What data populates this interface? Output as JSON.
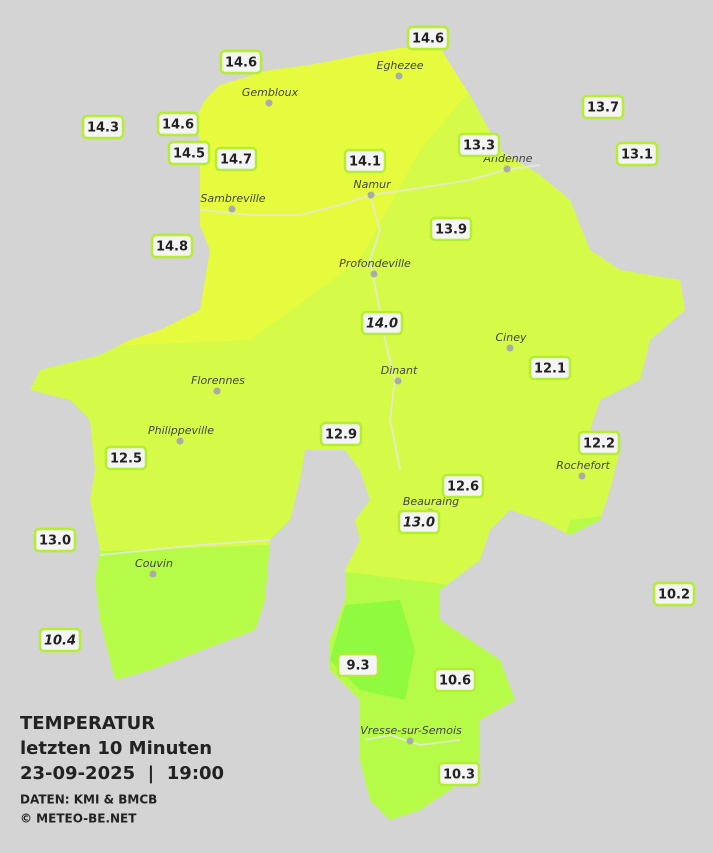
{
  "title": "TEMPERATUR",
  "subtitle": "letzten 10 Minuten",
  "datetime": "23-09-2025  |  19:00",
  "source": "DATEN: KMI & BMCB",
  "copyright": "© METEO-BE.NET",
  "cities": [
    "Eghezee",
    "Gembloux",
    "Andenne",
    "Namur",
    "Sambreville",
    "Profondeville",
    "Ciney",
    "Dinant",
    "Florennes",
    "Philippeville",
    "Rochefort",
    "Beauraing",
    "Couvin",
    "Vresse-sur-Semois"
  ],
  "stations": [
    {
      "label": "14.6"
    },
    {
      "label": "14.6"
    },
    {
      "label": "14.3"
    },
    {
      "label": "14.6"
    },
    {
      "label": "14.5"
    },
    {
      "label": "14.7"
    },
    {
      "label": "14.1"
    },
    {
      "label": "13.3"
    },
    {
      "label": "13.7"
    },
    {
      "label": "13.1"
    },
    {
      "label": "14.8"
    },
    {
      "label": "13.9"
    },
    {
      "label": "14.0",
      "italic": true
    },
    {
      "label": "12.1"
    },
    {
      "label": "12.9"
    },
    {
      "label": "12.2"
    },
    {
      "label": "12.5"
    },
    {
      "label": "12.6"
    },
    {
      "label": "13.0",
      "italic": true
    },
    {
      "label": "13.0"
    },
    {
      "label": "10.2"
    },
    {
      "label": "10.4",
      "italic": true
    },
    {
      "label": "9.3"
    },
    {
      "label": "10.6"
    },
    {
      "label": "10.3"
    }
  ]
}
